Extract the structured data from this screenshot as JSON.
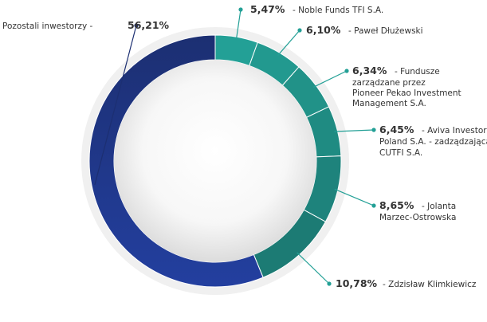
{
  "chart_data": {
    "type": "pie",
    "title": "",
    "slices": [
      {
        "name": "Noble Funds TFI S.A.",
        "percent_label": "5,47%",
        "value": 5.47,
        "color": "#23a096"
      },
      {
        "name": "Paweł Dłużewski",
        "percent_label": "6,10%",
        "value": 6.1,
        "color": "#22998f"
      },
      {
        "name": "Fundusze zarządzane przez Pioneer Pekao Investment Management S.A.",
        "percent_label": "6,34%",
        "value": 6.34,
        "color": "#219288"
      },
      {
        "name": "Aviva Investors Poland S.A. - zadządzająca CUTFI S.A.",
        "percent_label": "6,45%",
        "value": 6.45,
        "color": "#1f8b82"
      },
      {
        "name": "Jolanta Marzec-Ostrowska",
        "percent_label": "8,65%",
        "value": 8.65,
        "color": "#1e837c"
      },
      {
        "name": "Zdzisław Klimkiewicz",
        "percent_label": "10,78%",
        "value": 10.78,
        "color": "#1c7b74"
      },
      {
        "name": "Pozostali inwestorzy",
        "percent_label": "56,21%",
        "value": 56.21,
        "color_start": "#233f9f",
        "color_end": "#1c2f72"
      }
    ],
    "legend": "none",
    "colors": {
      "leader_line_teal": "#23a096",
      "leader_line_navy": "#1c2f72",
      "outer_ring": "#f0f0f0",
      "separator": "#ffffff"
    }
  }
}
